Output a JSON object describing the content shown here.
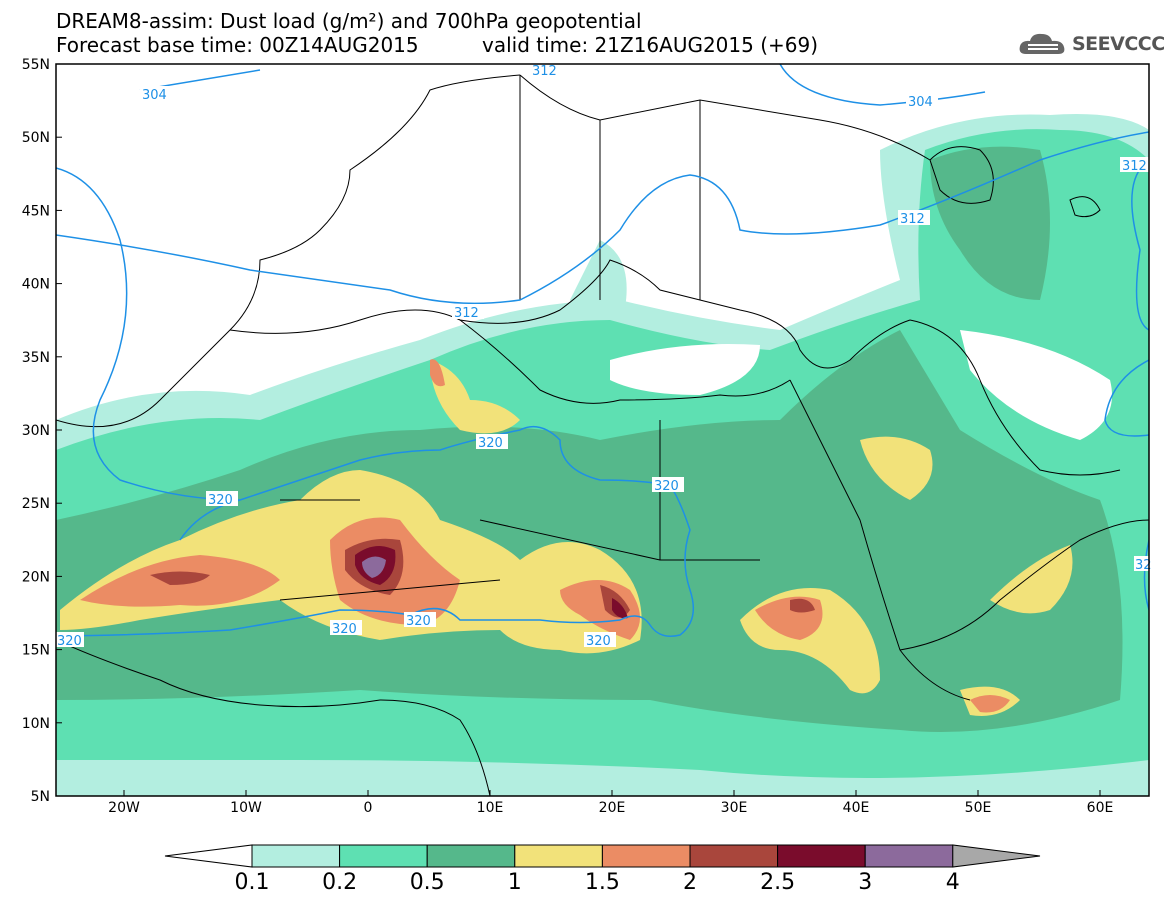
{
  "title": {
    "line1": "DREAM8-assim: Dust load (g/m²) and 700hPa geopotential",
    "line2a": "Forecast base time: 00Z14AUG2015",
    "line2b": "valid time: 21Z16AUG2015 (+69)"
  },
  "logo": {
    "text": "SEEVCCC",
    "icon": "cloud-logo-icon"
  },
  "axes": {
    "lat_labels": [
      "55N",
      "50N",
      "45N",
      "40N",
      "35N",
      "30N",
      "25N",
      "20N",
      "15N",
      "10N",
      "5N"
    ],
    "lon_labels": [
      "20W",
      "10W",
      "0",
      "10E",
      "20E",
      "30E",
      "40E",
      "50E",
      "60E"
    ]
  },
  "contours": {
    "color": "#1e90e6",
    "labels": [
      "304",
      "304",
      "312",
      "312",
      "312",
      "312",
      "320",
      "320",
      "320",
      "320",
      "320",
      "320",
      "320",
      "32"
    ]
  },
  "colorbar": {
    "ticks": [
      "0.1",
      "0.2",
      "0.5",
      "1",
      "1.5",
      "2",
      "2.5",
      "3",
      "4"
    ],
    "colors": [
      "#b3eee0",
      "#5ee0b2",
      "#55b88b",
      "#f2e27a",
      "#eb8c64",
      "#a9463c",
      "#7a0c2c",
      "#8c6a9c",
      "#a8a8a8"
    ]
  }
}
